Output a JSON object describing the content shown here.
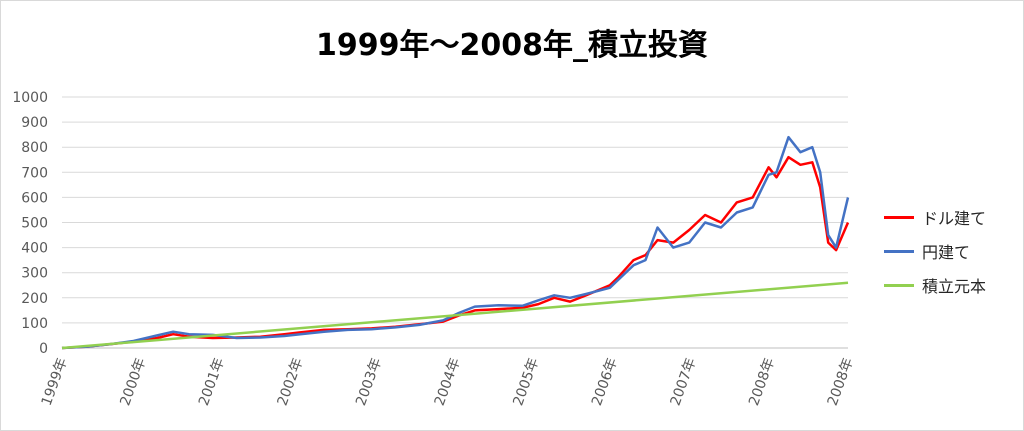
{
  "chart_data": {
    "type": "line",
    "title": "1999年～2008年_積立投資",
    "xlabel": "",
    "ylabel": "",
    "ylim": [
      0,
      1000
    ],
    "yticks": [
      0,
      100,
      200,
      300,
      400,
      500,
      600,
      700,
      800,
      900,
      1000
    ],
    "xticks": [
      "1999年",
      "2000年",
      "2001年",
      "2002年",
      "2003年",
      "2004年",
      "2005年",
      "2006年",
      "2007年",
      "2008年",
      "2008年"
    ],
    "xlim": [
      1999.0,
      2008.9
    ],
    "grid": true,
    "legend_position": "right",
    "series": [
      {
        "name": "ドル建て",
        "color": "#ff0000",
        "x": [
          1999.0,
          1999.3,
          1999.6,
          1999.9,
          2000.2,
          2000.4,
          2000.6,
          2000.9,
          2001.2,
          2001.5,
          2001.8,
          2002.0,
          2002.3,
          2002.6,
          2002.9,
          2003.2,
          2003.5,
          2003.8,
          2004.0,
          2004.2,
          2004.5,
          2004.8,
          2005.0,
          2005.2,
          2005.4,
          2005.6,
          2005.9,
          2006.0,
          2006.2,
          2006.35,
          2006.5,
          2006.7,
          2006.9,
          2007.1,
          2007.3,
          2007.5,
          2007.7,
          2007.9,
          2008.0,
          2008.15,
          2008.3,
          2008.45,
          2008.55,
          2008.65,
          2008.75,
          2008.9
        ],
        "y": [
          0,
          5,
          15,
          25,
          40,
          55,
          45,
          40,
          42,
          45,
          55,
          62,
          72,
          75,
          78,
          85,
          95,
          105,
          130,
          150,
          155,
          160,
          175,
          200,
          185,
          210,
          250,
          280,
          350,
          370,
          430,
          420,
          470,
          530,
          500,
          580,
          600,
          720,
          680,
          760,
          730,
          740,
          640,
          420,
          390,
          500
        ]
      },
      {
        "name": "円建て",
        "color": "#4472c4",
        "x": [
          1999.0,
          1999.3,
          1999.6,
          1999.9,
          2000.2,
          2000.4,
          2000.6,
          2000.9,
          2001.2,
          2001.5,
          2001.8,
          2002.0,
          2002.3,
          2002.6,
          2002.9,
          2003.2,
          2003.5,
          2003.8,
          2004.0,
          2004.2,
          2004.5,
          2004.8,
          2005.0,
          2005.2,
          2005.4,
          2005.6,
          2005.9,
          2006.0,
          2006.2,
          2006.35,
          2006.5,
          2006.7,
          2006.9,
          2007.1,
          2007.3,
          2007.5,
          2007.7,
          2007.9,
          2008.0,
          2008.15,
          2008.3,
          2008.45,
          2008.55,
          2008.65,
          2008.75,
          2008.9
        ],
        "y": [
          0,
          5,
          15,
          28,
          50,
          65,
          55,
          52,
          40,
          42,
          48,
          55,
          65,
          72,
          75,
          82,
          92,
          110,
          140,
          165,
          170,
          168,
          190,
          210,
          200,
          215,
          240,
          270,
          330,
          350,
          480,
          400,
          420,
          500,
          480,
          540,
          560,
          690,
          700,
          840,
          780,
          800,
          700,
          450,
          400,
          600
        ]
      },
      {
        "name": "積立元本",
        "color": "#92d050",
        "x": [
          1999.0,
          2008.9
        ],
        "y": [
          0,
          260
        ]
      }
    ]
  }
}
